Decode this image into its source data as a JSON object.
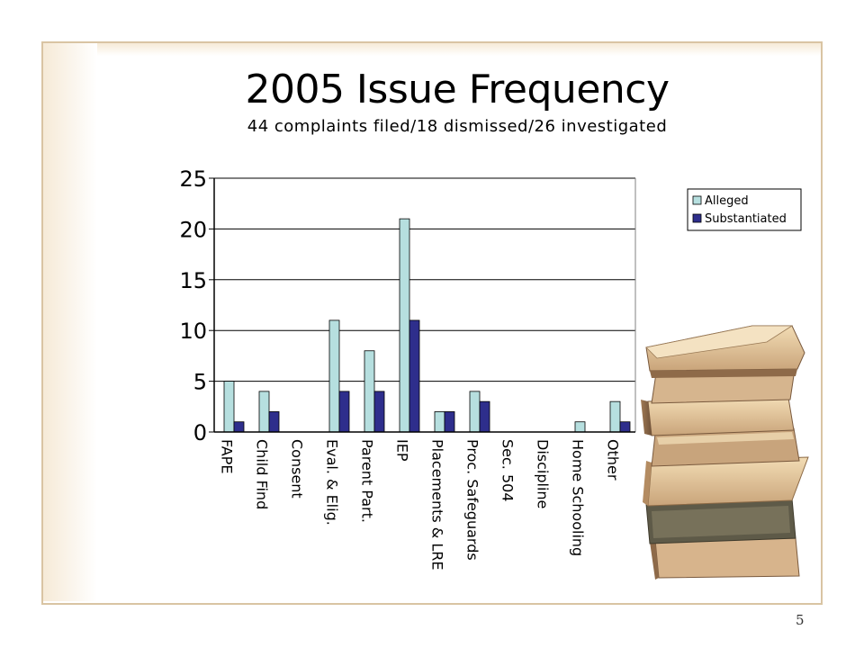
{
  "slide": {
    "title": "2005 Issue Frequency",
    "subtitle": "44 complaints filed/18 dismissed/26 investigated",
    "page_number": "5"
  },
  "chart_data": {
    "type": "bar",
    "title": "",
    "xlabel": "",
    "ylabel": "",
    "ylim": [
      0,
      25
    ],
    "yticks": [
      0,
      5,
      10,
      15,
      20,
      25
    ],
    "grid": true,
    "legend_position": "top-right",
    "categories": [
      "FAPE",
      "Child Find",
      "Consent",
      "Eval. & Elig.",
      "Parent Part.",
      "IEP",
      "Placements & LRE",
      "Proc. Safeguards",
      "Sec. 504",
      "Discipline",
      "Home Schooling",
      "Other"
    ],
    "series": [
      {
        "name": "Alleged",
        "color": "#b6dfdf",
        "values": [
          5,
          4,
          0,
          11,
          8,
          21,
          2,
          4,
          0,
          0,
          1,
          3
        ]
      },
      {
        "name": "Substantiated",
        "color": "#2e2e8c",
        "values": [
          1,
          2,
          0,
          4,
          4,
          11,
          2,
          3,
          0,
          0,
          0,
          1
        ]
      }
    ]
  }
}
